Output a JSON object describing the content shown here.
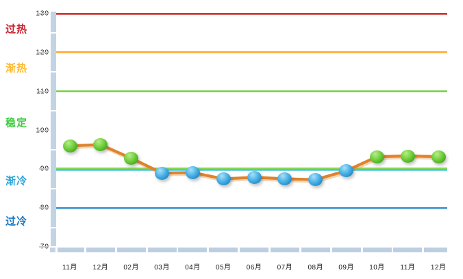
{
  "chart_data": {
    "type": "line",
    "title": "",
    "xlabel": "",
    "ylabel": "",
    "grid": false,
    "legend": "none",
    "ylim": [
      70,
      130
    ],
    "yticks": [
      130,
      120,
      110,
      100,
      90,
      80,
      70
    ],
    "categories": [
      "11月",
      "12月",
      "02月",
      "03月",
      "04月",
      "05月",
      "06月",
      "07月",
      "08月",
      "09月",
      "10月",
      "11月",
      "12月"
    ],
    "series": [
      {
        "values": [
          96,
          96.3,
          92.8,
          89,
          89.1,
          87.5,
          87.9,
          87.5,
          87.3,
          89.6,
          93.2,
          93.4,
          93.2
        ],
        "line_color": "#e0832d"
      }
    ],
    "marker_rule": {
      "threshold": 90,
      "color_at_or_above": "green",
      "color_below": "blue",
      "green_hex": "#55b82a",
      "blue_hex": "#2e97d4"
    },
    "threshold_lines": [
      {
        "value": 130,
        "color": "#d23030"
      },
      {
        "value": 120,
        "color": "#ffa93a"
      },
      {
        "value": 110,
        "color": "#68c737"
      },
      {
        "value": 90,
        "color": "#82d854"
      },
      {
        "value": 90,
        "color": "#49c3e8"
      },
      {
        "value": 80,
        "color": "#3e92d0"
      }
    ],
    "zones": [
      {
        "label": "过热",
        "color": "#c9202e"
      },
      {
        "label": "渐热",
        "color": "#ffb92e"
      },
      {
        "label": "稳定",
        "color": "#3ecc3e"
      },
      {
        "label": "渐冷",
        "color": "#2ba4dc"
      },
      {
        "label": "过冷",
        "color": "#1677c4"
      }
    ]
  }
}
